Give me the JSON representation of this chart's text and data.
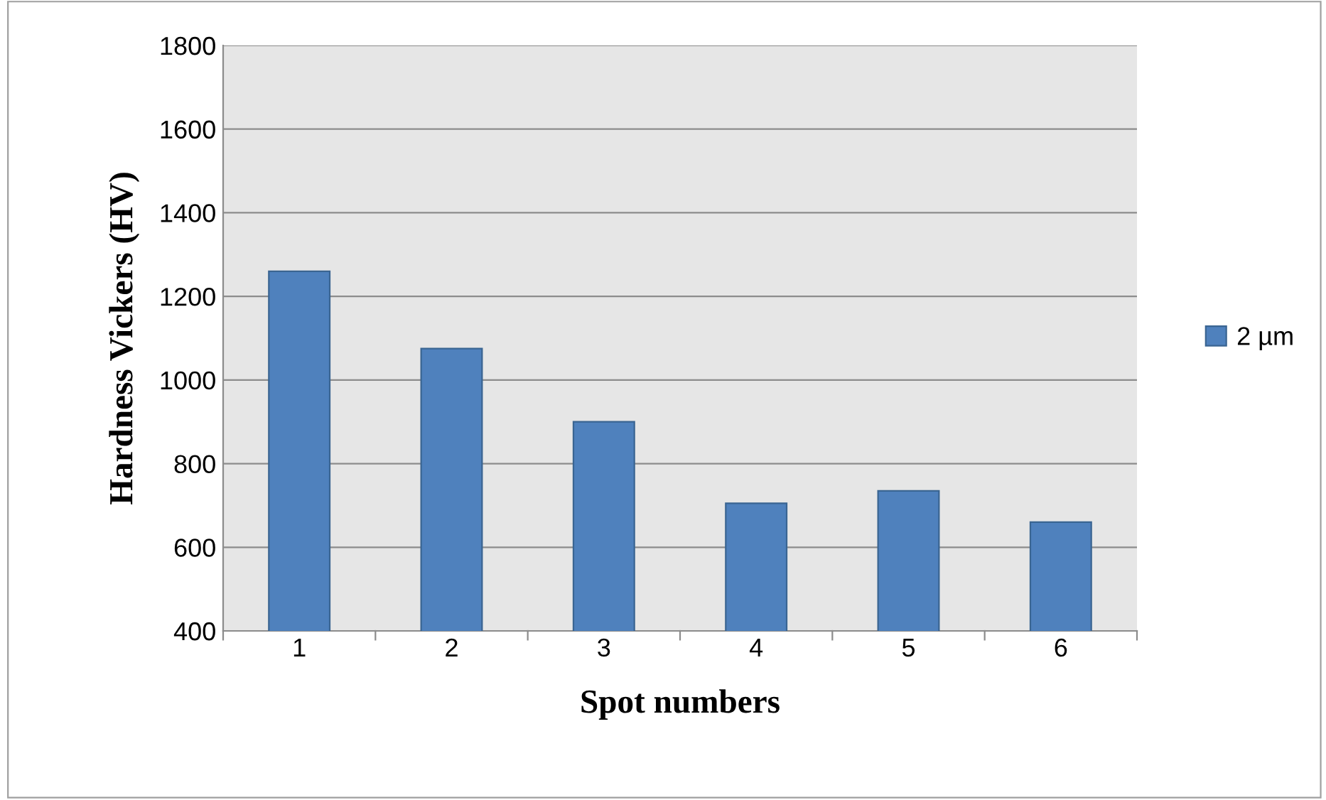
{
  "chart_data": {
    "type": "bar",
    "xlabel": "Spot numbers",
    "ylabel": "Hardness Vickers (HV)",
    "categories": [
      "1",
      "2",
      "3",
      "4",
      "5",
      "6"
    ],
    "series": [
      {
        "name": "2 µm",
        "color": "#4f81bd",
        "values": [
          1260,
          1075,
          900,
          705,
          735,
          660
        ]
      }
    ],
    "ylim": [
      400,
      1800
    ],
    "yticks": [
      400,
      600,
      800,
      1000,
      1200,
      1400,
      1600,
      1800
    ],
    "grid": "y",
    "legend": "right"
  }
}
